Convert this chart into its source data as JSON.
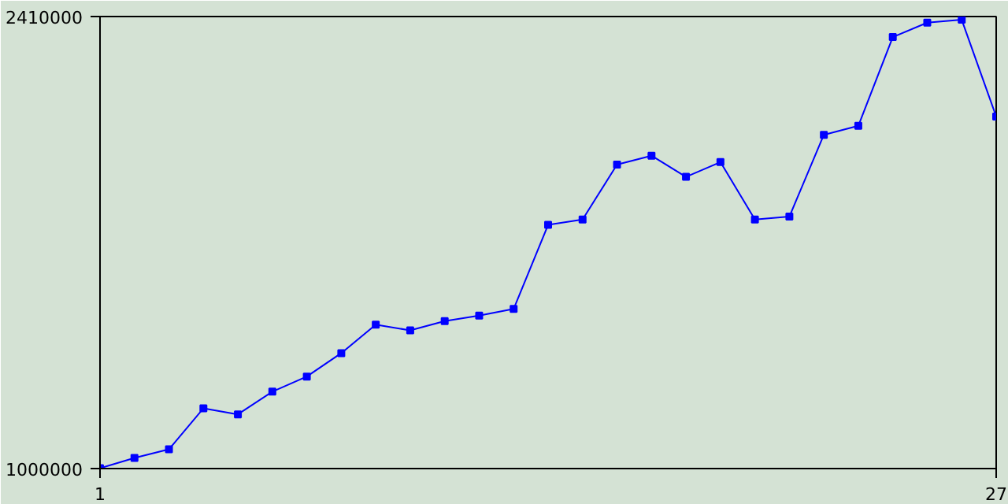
{
  "chart_data": {
    "type": "line",
    "x": [
      1,
      2,
      3,
      4,
      5,
      6,
      7,
      8,
      9,
      10,
      11,
      12,
      13,
      14,
      15,
      16,
      17,
      18,
      19,
      20,
      21,
      22,
      23,
      24,
      25,
      26,
      27
    ],
    "series": [
      {
        "color": "#0000ff",
        "values": [
          1001000,
          1033000,
          1060000,
          1188000,
          1169000,
          1240000,
          1287000,
          1360000,
          1449000,
          1431000,
          1460000,
          1477000,
          1498000,
          1760000,
          1777000,
          1948000,
          1976000,
          1910000,
          1956000,
          1777000,
          1786000,
          2041000,
          2069000,
          2346000,
          2391000,
          2400000,
          2098000
        ]
      }
    ],
    "xlim": [
      1,
      27
    ],
    "xticks": [
      1,
      27
    ],
    "ylim": [
      1000000,
      2410000
    ],
    "yticks": [
      1000000,
      2410000
    ],
    "marker": "square",
    "line_style": "solid"
  }
}
